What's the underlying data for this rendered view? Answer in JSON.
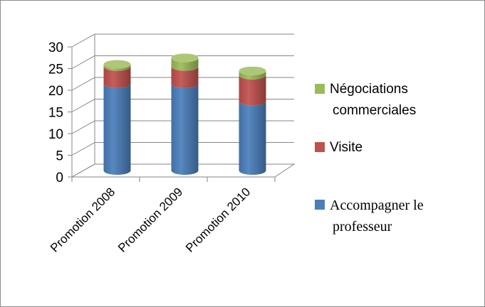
{
  "chart_data": {
    "type": "bar",
    "stacked": true,
    "style": "3d-cylinder",
    "categories": [
      "Promotion 2008",
      "Promotion 2009",
      "Promotion 2010"
    ],
    "series": [
      {
        "name": "Accompagner le professeur",
        "values": [
          20,
          20,
          16
        ],
        "color": "#4a7ebb"
      },
      {
        "name": "Visite",
        "values": [
          4,
          4,
          6
        ],
        "color": "#c0504d"
      },
      {
        "name": "Négociations commerciales",
        "values": [
          0.5,
          2,
          1
        ],
        "color": "#9bbb59"
      }
    ],
    "yticks": [
      0,
      5,
      10,
      15,
      20,
      25,
      30
    ],
    "ylim": [
      0,
      30
    ],
    "grid": true,
    "legend_position": "right",
    "legend_order": [
      "Négociations commerciales",
      "Visite",
      "Accompagner le professeur"
    ],
    "legend_lines": {
      "Négociations commerciales": [
        "Négociations",
        "commerciales"
      ],
      "Visite": [
        "Visite"
      ],
      "Accompagner le professeur": [
        "Accompagner le",
        "professeur"
      ]
    }
  }
}
